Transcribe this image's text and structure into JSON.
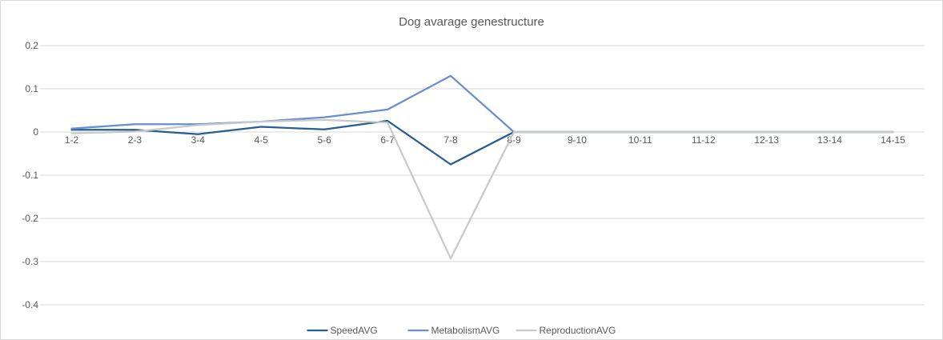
{
  "chart_data": {
    "type": "line",
    "title": "Dog avarage genestructure",
    "xlabel": "",
    "ylabel": "",
    "categories": [
      "1-2",
      "2-3",
      "3-4",
      "4-5",
      "5-6",
      "6-7",
      "7-8",
      "8-9",
      "9-10",
      "10-11",
      "11-12",
      "12-13",
      "13-14",
      "14-15"
    ],
    "y_ticks": [
      "0.2",
      "0.1",
      "0",
      "-0.1",
      "-0.2",
      "-0.3",
      "-0.4"
    ],
    "ylim": [
      -0.4,
      0.2
    ],
    "grid": true,
    "legend_position": "bottom",
    "series": [
      {
        "name": "SpeedAVG",
        "color": "#255e91",
        "values": [
          0.005,
          0.005,
          -0.005,
          0.012,
          0.006,
          0.026,
          -0.075,
          0,
          0,
          0,
          0,
          0,
          0,
          0
        ]
      },
      {
        "name": "MetabolismAVG",
        "color": "#698ed0",
        "values": [
          0.008,
          0.018,
          0.018,
          0.024,
          0.034,
          0.052,
          0.13,
          0,
          0,
          0,
          0,
          0,
          0,
          0
        ]
      },
      {
        "name": "ReproductionAVG",
        "color": "#c9c9c9",
        "values": [
          -0.003,
          0.001,
          0.016,
          0.024,
          0.028,
          0.022,
          -0.293,
          0,
          0,
          0,
          0,
          0,
          0,
          0
        ]
      }
    ]
  }
}
